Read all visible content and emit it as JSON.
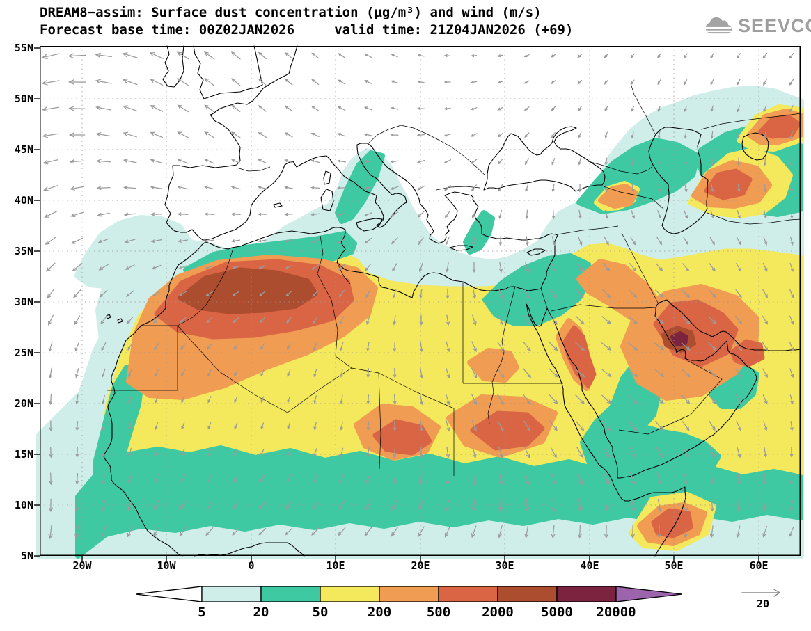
{
  "header": {
    "title_line1": "DREAM8−assim: Surface dust concentration (μg/m³) and wind (m/s)",
    "title_line2": "Forecast base time: 00Z02JAN2026     valid time: 21Z04JAN2026 (+69)",
    "logo_text": "SEEVCCC"
  },
  "axes": {
    "lat_ticks": [
      "55N",
      "50N",
      "45N",
      "40N",
      "35N",
      "30N",
      "25N",
      "20N",
      "15N",
      "10N",
      "5N"
    ],
    "lon_ticks": [
      "20W",
      "10W",
      "0",
      "10E",
      "20E",
      "30E",
      "40E",
      "50E",
      "60E"
    ]
  },
  "colorbar": {
    "levels": [
      "5",
      "20",
      "50",
      "200",
      "500",
      "2000",
      "5000",
      "20000"
    ],
    "palette": {
      "below_5": "#ffffff",
      "c5_20": "#cfeee9",
      "c20_50": "#3fc9a3",
      "c50_200": "#f4e85c",
      "c200_500": "#f09c52",
      "c500_2000": "#d96545",
      "c2000_5000": "#ab4d2e",
      "c5000_20000": "#7c2340",
      "above_20000": "#9c64ad"
    }
  },
  "wind_legend": {
    "reference_label": "20"
  },
  "colors": {
    "wind_arrow": "#9b9b9b",
    "coastline": "#000000",
    "grid": "#999999",
    "logo_gray": "#9e9e9e"
  },
  "chart_data": {
    "type": "filled_contour_map",
    "title": "DREAM8−assim: Surface dust concentration (μg/m³) and wind (m/s)",
    "variable": "Surface dust concentration",
    "units": "μg/m³",
    "wind_units": "m/s",
    "forecast_base_time": "00Z02JAN2026",
    "valid_time": "21Z04JAN2026",
    "forecast_hour": "+69",
    "wind_reference_speed": 20,
    "lat_range_deg_n": [
      5,
      55
    ],
    "lon_range_deg": [
      -25,
      65
    ],
    "lat_tick_interval_deg": 5,
    "lon_tick_interval_deg": 10,
    "contour_levels": [
      5,
      20,
      50,
      200,
      500,
      2000,
      5000,
      20000
    ],
    "level_colors": [
      "#ffffff",
      "#cfeee9",
      "#3fc9a3",
      "#f4e85c",
      "#f09c52",
      "#d96545",
      "#ab4d2e",
      "#7c2340",
      "#9c64ad"
    ],
    "notable_features": [
      {
        "region": "central Algerian Sahara plume core",
        "approx_lon_lat": [
          3,
          30
        ],
        "band": "2000-5000"
      },
      {
        "region": "western Sahara / Mauritania / Mali plume",
        "approx_lon_lat": [
          -6,
          27
        ],
        "band": "500-2000"
      },
      {
        "region": "Chad (Bodele) dust patch",
        "approx_lon_lat": [
          17,
          16
        ],
        "band": "500-2000"
      },
      {
        "region": "Sudan dust patch",
        "approx_lon_lat": [
          29,
          16
        ],
        "band": "500-2000"
      },
      {
        "region": "eastern Arabia / Persian Gulf maximum",
        "approx_lon_lat": [
          50,
          26
        ],
        "band": "5000-20000"
      },
      {
        "region": "coastal Somalia patch",
        "approx_lon_lat": [
          49,
          9
        ],
        "band": "500-2000"
      },
      {
        "region": "east of Caspian Sea patch",
        "approx_lon_lat": [
          55,
          42
        ],
        "band": "500-2000"
      },
      {
        "region": "northeast corner steppe patch",
        "approx_lon_lat": [
          61,
          48
        ],
        "band": "500-2000"
      },
      {
        "region": "Saharan yellow shield (50-200) spanning 17W-60E, 12N-35N",
        "approx_lon_lat": [
          15,
          24
        ],
        "band": "50-200"
      }
    ]
  }
}
